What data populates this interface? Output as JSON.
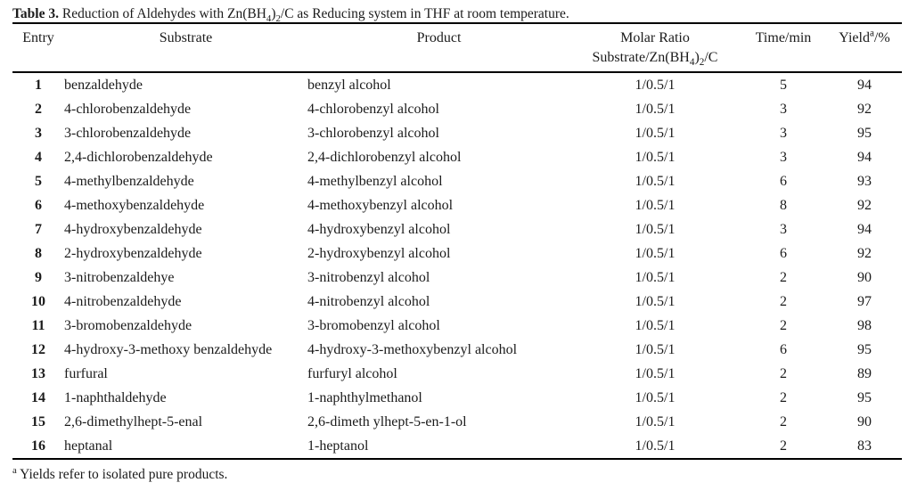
{
  "table": {
    "title": {
      "label": "Table 3.",
      "segments": [
        {
          "t": " Reduction of Aldehydes with Zn(BH"
        },
        {
          "t": "4",
          "sub": true
        },
        {
          "t": ")"
        },
        {
          "t": "2",
          "sub": true
        },
        {
          "t": "/C as Reducing system in THF at room temperature."
        }
      ]
    },
    "columns": [
      {
        "key": "entry",
        "label_segments": [
          {
            "t": "Entry"
          }
        ]
      },
      {
        "key": "substrate",
        "label_segments": [
          {
            "t": "Substrate"
          }
        ]
      },
      {
        "key": "product",
        "label_segments": [
          {
            "t": "Product"
          }
        ]
      },
      {
        "key": "ratio",
        "label_segments": [
          {
            "t": "Molar Ratio"
          },
          {
            "br": true
          },
          {
            "t": "Substrate/Zn(BH"
          },
          {
            "t": "4",
            "sub": true
          },
          {
            "t": ")"
          },
          {
            "t": "2",
            "sub": true
          },
          {
            "t": "/C"
          }
        ]
      },
      {
        "key": "time",
        "label_segments": [
          {
            "t": "Time/min"
          }
        ]
      },
      {
        "key": "yield",
        "label_segments": [
          {
            "t": "Yield"
          },
          {
            "t": "a",
            "sup": true
          },
          {
            "t": "/%"
          }
        ]
      }
    ],
    "rows": [
      {
        "entry": "1",
        "substrate": "benzaldehyde",
        "product": "benzyl alcohol",
        "ratio": "1/0.5/1",
        "time": "5",
        "yield": "94"
      },
      {
        "entry": "2",
        "substrate": "4-chlorobenzaldehyde",
        "product": "4-chlorobenzyl alcohol",
        "ratio": "1/0.5/1",
        "time": "3",
        "yield": "92"
      },
      {
        "entry": "3",
        "substrate": "3-chlorobenzaldehyde",
        "product": "3-chlorobenzyl alcohol",
        "ratio": "1/0.5/1",
        "time": "3",
        "yield": "95"
      },
      {
        "entry": "4",
        "substrate": "2,4-dichlorobenzaldehyde",
        "product": "2,4-dichlorobenzyl alcohol",
        "ratio": "1/0.5/1",
        "time": "3",
        "yield": "94"
      },
      {
        "entry": "5",
        "substrate": "4-methylbenzaldehyde",
        "product": "4-methylbenzyl alcohol",
        "ratio": "1/0.5/1",
        "time": "6",
        "yield": "93"
      },
      {
        "entry": "6",
        "substrate": "4-methoxybenzaldehyde",
        "product": "4-methoxybenzyl alcohol",
        "ratio": "1/0.5/1",
        "time": "8",
        "yield": "92"
      },
      {
        "entry": "7",
        "substrate": "4-hydroxybenzaldehyde",
        "product": "4-hydroxybenzyl alcohol",
        "ratio": "1/0.5/1",
        "time": "3",
        "yield": "94"
      },
      {
        "entry": "8",
        "substrate": "2-hydroxybenzaldehyde",
        "product": "2-hydroxybenzyl alcohol",
        "ratio": "1/0.5/1",
        "time": "6",
        "yield": "92"
      },
      {
        "entry": "9",
        "substrate": "3-nitrobenzaldehye",
        "product": "3-nitrobenzyl alcohol",
        "ratio": "1/0.5/1",
        "time": "2",
        "yield": "90"
      },
      {
        "entry": "10",
        "substrate": "4-nitrobenzaldehyde",
        "product": "4-nitrobenzyl alcohol",
        "ratio": "1/0.5/1",
        "time": "2",
        "yield": "97"
      },
      {
        "entry": "11",
        "substrate": "3-bromobenzaldehyde",
        "product": "3-bromobenzyl alcohol",
        "ratio": "1/0.5/1",
        "time": "2",
        "yield": "98"
      },
      {
        "entry": "12",
        "substrate": "4-hydroxy-3-methoxy benzaldehyde",
        "product": "4-hydroxy-3-methoxybenzyl alcohol",
        "ratio": "1/0.5/1",
        "time": "6",
        "yield": "95"
      },
      {
        "entry": "13",
        "substrate": "furfural",
        "product": "furfuryl alcohol",
        "ratio": "1/0.5/1",
        "time": "2",
        "yield": "89"
      },
      {
        "entry": "14",
        "substrate": "1-naphthaldehyde",
        "product": "1-naphthylmethanol",
        "ratio": "1/0.5/1",
        "time": "2",
        "yield": "95"
      },
      {
        "entry": "15",
        "substrate": "2,6-dimethylhept-5-enal",
        "product": "2,6-dimeth ylhept-5-en-1-ol",
        "ratio": "1/0.5/1",
        "time": "2",
        "yield": "90"
      },
      {
        "entry": "16",
        "substrate": "heptanal",
        "product": "1-heptanol",
        "ratio": "1/0.5/1",
        "time": "2",
        "yield": "83"
      }
    ],
    "footnote": {
      "marker": "a",
      "text": " Yields refer to isolated pure products."
    },
    "colors": {
      "text": "#1b1b1b",
      "rule": "#000000",
      "background": "#ffffff"
    }
  }
}
